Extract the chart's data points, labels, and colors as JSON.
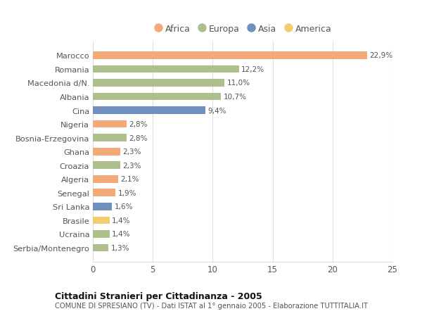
{
  "countries": [
    "Serbia/Montenegro",
    "Ucraina",
    "Brasile",
    "Sri Lanka",
    "Senegal",
    "Algeria",
    "Croazia",
    "Ghana",
    "Bosnia-Erzegovina",
    "Nigeria",
    "Cina",
    "Albania",
    "Macedonia d/N.",
    "Romania",
    "Marocco"
  ],
  "values": [
    1.3,
    1.4,
    1.4,
    1.6,
    1.9,
    2.1,
    2.3,
    2.3,
    2.8,
    2.8,
    9.4,
    10.7,
    11.0,
    12.2,
    22.9
  ],
  "continents": [
    "Europa",
    "Europa",
    "America",
    "Asia",
    "Africa",
    "Africa",
    "Europa",
    "Africa",
    "Europa",
    "Africa",
    "Asia",
    "Europa",
    "Europa",
    "Europa",
    "Africa"
  ],
  "colors": {
    "Africa": "#F4AA78",
    "Europa": "#ADBF8C",
    "Asia": "#7090BF",
    "America": "#F2CC70"
  },
  "legend_order": [
    "Africa",
    "Europa",
    "Asia",
    "America"
  ],
  "xlim": [
    0,
    25
  ],
  "xticks": [
    0,
    5,
    10,
    15,
    20,
    25
  ],
  "title": "Cittadini Stranieri per Cittadinanza - 2005",
  "subtitle": "COMUNE DI SPRESIANO (TV) - Dati ISTAT al 1° gennaio 2005 - Elaborazione TUTTITALIA.IT",
  "background_color": "#ffffff",
  "grid_color": "#dddddd",
  "bar_height": 0.55
}
